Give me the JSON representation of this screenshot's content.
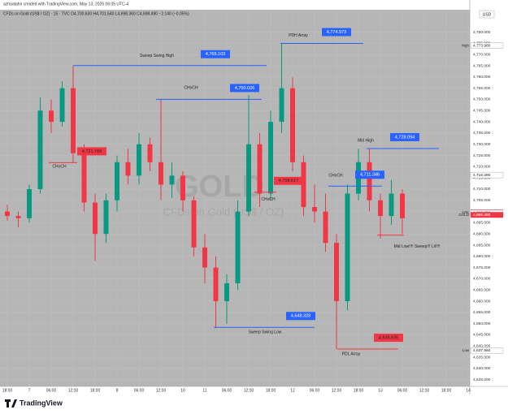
{
  "header": {
    "credit": "azhaatahir created with TradingView.com, May 13, 2026 06:05 UTC-4",
    "symbol_line": "CFDs on Gold (US$ / OZ) · 15 · TVC  O4,700.630 H4,701.540 L4,698.360 C4,698.490 −2.140 (−0.05%)",
    "currency": "USD",
    "footer_logo": "TradingView"
  },
  "chart_data": {
    "type": "candlestick",
    "watermark": "GOLD",
    "watermark_sub": "CFDs on Gold (US$ / OZ)",
    "up_color": "#089981",
    "down_color": "#f23645",
    "grid": true,
    "categories": [
      "18:00",
      null,
      "7",
      null,
      "06:00",
      null,
      "12:00",
      null,
      "18:00",
      null,
      "8",
      null,
      "06:00",
      null,
      "12:00",
      null,
      "10",
      null,
      "11",
      null,
      "06:00",
      null,
      "12:00",
      null,
      "18:00",
      null,
      "12",
      null,
      "06:00",
      null,
      "12:00",
      null,
      "18:00",
      null,
      "13",
      null,
      "06:00",
      null,
      "12:00",
      null,
      "18:00",
      null,
      "14"
    ],
    "open": [
      4700,
      4698,
      4697,
      4710,
      4745,
      4740,
      4755,
      4726,
      4704,
      4690,
      4705,
      4722,
      4716,
      4730,
      4722,
      4712,
      4716,
      4705,
      4684,
      4675,
      4660,
      4668,
      4700,
      4730,
      4708,
      4740,
      4755,
      4722,
      4702,
      4700,
      4686,
      4660,
      4708,
      4722,
      4705,
      4698,
      4708,
      null,
      null,
      null,
      null,
      null,
      null
    ],
    "high": [
      4703,
      4700,
      4712,
      4751,
      4750,
      4758,
      4765,
      4730,
      4708,
      4708,
      4725,
      4728,
      4735,
      4733,
      4750,
      4722,
      4718,
      4707,
      4690,
      4680,
      4672,
      4705,
      4752,
      4735,
      4745,
      4775,
      4760,
      4725,
      4712,
      4708,
      4690,
      4712,
      4728,
      4728,
      4708,
      4714,
      4710,
      null,
      null,
      null,
      null,
      null,
      null
    ],
    "low": [
      4696,
      4693,
      4695,
      4708,
      4735,
      4738,
      4722,
      4700,
      4678,
      4686,
      4700,
      4712,
      4712,
      4718,
      4705,
      4706,
      4700,
      4680,
      4668,
      4648,
      4650,
      4665,
      4698,
      4702,
      4705,
      4735,
      4718,
      4698,
      4695,
      4682,
      4638.6,
      4656,
      4705,
      4700,
      4688,
      4694,
      4690,
      null,
      null,
      null,
      null,
      null,
      null
    ],
    "close": [
      4698,
      4697,
      4710,
      4745,
      4740,
      4755,
      4726,
      4704,
      4690,
      4705,
      4722,
      4716,
      4730,
      4722,
      4712,
      4716,
      4705,
      4684,
      4675,
      4660,
      4668,
      4700,
      4730,
      4708,
      4740,
      4755,
      4722,
      4702,
      4700,
      4686,
      4660,
      4708,
      4722,
      4705,
      4698,
      4708,
      4697,
      null,
      null,
      null,
      null,
      null,
      null
    ],
    "ylim": [
      4622,
      4790
    ],
    "yticks": [
      {
        "value": 4625,
        "label": "4,625.000"
      },
      {
        "value": 4630,
        "label": "4,630.000"
      },
      {
        "value": 4635,
        "label": "4,635.000"
      },
      {
        "value": 4640,
        "label": "4,640.000"
      },
      {
        "value": 4645,
        "label": "4,645.000"
      },
      {
        "value": 4650,
        "label": "4,650.000"
      },
      {
        "value": 4655,
        "label": "4,655.000"
      },
      {
        "value": 4660,
        "label": "4,660.000"
      },
      {
        "value": 4665,
        "label": "4,665.000"
      },
      {
        "value": 4670,
        "label": "4,670.000"
      },
      {
        "value": 4675,
        "label": "4,675.000"
      },
      {
        "value": 4680,
        "label": "4,680.000"
      },
      {
        "value": 4685,
        "label": "4,685.000"
      },
      {
        "value": 4690,
        "label": "4,690.000"
      },
      {
        "value": 4695,
        "label": "4,695.000"
      },
      {
        "value": 4700,
        "label": "4,700.000"
      },
      {
        "value": 4705,
        "label": "4,705.000"
      },
      {
        "value": 4710,
        "label": "4,710.000"
      },
      {
        "value": 4715,
        "label": "4,715.000"
      },
      {
        "value": 4720,
        "label": "4,720.000"
      },
      {
        "value": 4725,
        "label": "4,725.000"
      },
      {
        "value": 4730,
        "label": "4,730.000"
      },
      {
        "value": 4735,
        "label": "4,735.000"
      },
      {
        "value": 4740,
        "label": "4,740.000"
      },
      {
        "value": 4745,
        "label": "4,745.000"
      },
      {
        "value": 4750,
        "label": "4,750.000"
      },
      {
        "value": 4755,
        "label": "4,755.000"
      },
      {
        "value": 4760,
        "label": "4,760.000"
      },
      {
        "value": 4765,
        "label": "4,765.000"
      },
      {
        "value": 4770,
        "label": "4,770.000"
      },
      {
        "value": 4775,
        "label": "4,775.000"
      },
      {
        "value": 4780,
        "label": "4,780.000"
      }
    ],
    "annotations": [
      {
        "text": "Sweep Swing High",
        "value": 4765.103,
        "value_label": "4,765.103",
        "color": "#2962ff"
      },
      {
        "text": "CHoCH",
        "value": 4750.026,
        "value_label": "4,750.026",
        "color": "#2962ff"
      },
      {
        "text": "PDH Array",
        "value": 4774.973,
        "value_label": "4,774.973",
        "color": "#2962ff"
      },
      {
        "text": "CHoCH",
        "value": 4721.789,
        "value_label": "4,721.789",
        "color": "#f23645"
      },
      {
        "text": "CHoCH",
        "value": 4708.617,
        "value_label": "4,708.617",
        "color": "#f23645"
      },
      {
        "text": "CHoCH",
        "value": 4711.346,
        "value_label": "4,711.346",
        "color": "#2962ff"
      },
      {
        "text": "Mid High",
        "value": 4728.094,
        "value_label": "4,728.094",
        "color": "#2962ff"
      },
      {
        "text": "Sweep Swing Low",
        "value": 4648.328,
        "value_label": "4,648.328",
        "color": "#2962ff"
      },
      {
        "text": "PDL Array",
        "value": 4638.635,
        "value_label": "4,638.635",
        "color": "#f23645"
      },
      {
        "text": "Mid Low!!!! Sweep!!! Lil!!!!",
        "value": 4689.5,
        "color": "#f23645"
      }
    ],
    "axis_badges": [
      {
        "name": "High",
        "value": 4773.98,
        "label": "4,773.980",
        "color": "#ffffff"
      },
      {
        "value": 4716.28,
        "label": "4,716.280",
        "color": "#ffffff"
      },
      {
        "name": "ASK",
        "value": 4699.608,
        "label": "4,699.608",
        "color": "#f23645"
      },
      {
        "value": 4699.352,
        "label": "4,699.352",
        "color": "#ffffff"
      },
      {
        "name": "GOLD",
        "value": 4698.49,
        "label": "4,698.490",
        "color": "#f23645"
      },
      {
        "name": "Low",
        "value": 4637.96,
        "label": "4,637.960",
        "color": "#ffffff"
      }
    ]
  }
}
